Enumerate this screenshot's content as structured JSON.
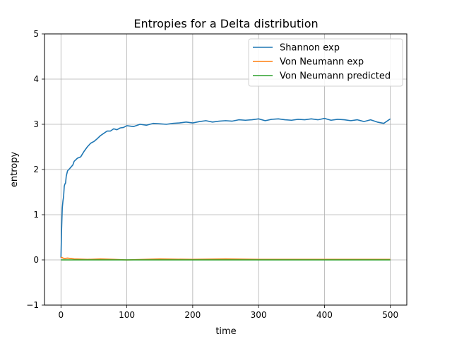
{
  "chart_data": {
    "type": "line",
    "title": "Entropies for a Delta distribution",
    "xlabel": "time",
    "ylabel": "entropy",
    "xlim": [
      -25,
      525
    ],
    "ylim": [
      -1,
      5
    ],
    "xticks": [
      0,
      100,
      200,
      300,
      400,
      500
    ],
    "yticks": [
      -1,
      0,
      1,
      2,
      3,
      4,
      5
    ],
    "grid": true,
    "legend_position": "top-right",
    "series": [
      {
        "name": "Shannon exp",
        "color": "#1f77b4",
        "x": [
          0,
          1,
          2,
          3,
          4,
          5,
          6,
          7,
          8,
          10,
          12,
          15,
          18,
          20,
          25,
          30,
          35,
          40,
          45,
          50,
          55,
          60,
          65,
          70,
          75,
          80,
          85,
          90,
          95,
          100,
          110,
          120,
          130,
          140,
          150,
          160,
          170,
          180,
          190,
          200,
          210,
          220,
          230,
          240,
          250,
          260,
          270,
          280,
          290,
          300,
          310,
          320,
          330,
          340,
          350,
          360,
          370,
          380,
          390,
          400,
          410,
          420,
          430,
          440,
          450,
          460,
          470,
          480,
          490,
          500
        ],
        "y": [
          0.05,
          0.7,
          1.15,
          1.3,
          1.4,
          1.63,
          1.68,
          1.7,
          1.85,
          1.97,
          2.0,
          2.05,
          2.1,
          2.18,
          2.25,
          2.28,
          2.4,
          2.5,
          2.58,
          2.62,
          2.68,
          2.75,
          2.8,
          2.85,
          2.85,
          2.9,
          2.88,
          2.92,
          2.93,
          2.97,
          2.95,
          3.0,
          2.98,
          3.02,
          3.01,
          3.0,
          3.02,
          3.03,
          3.05,
          3.03,
          3.06,
          3.08,
          3.05,
          3.07,
          3.08,
          3.07,
          3.1,
          3.09,
          3.1,
          3.12,
          3.08,
          3.11,
          3.12,
          3.1,
          3.09,
          3.11,
          3.1,
          3.12,
          3.1,
          3.13,
          3.09,
          3.11,
          3.1,
          3.08,
          3.1,
          3.06,
          3.1,
          3.05,
          3.02,
          3.12
        ]
      },
      {
        "name": "Von Neumann exp",
        "color": "#ff7f0e",
        "x": [
          0,
          5,
          10,
          20,
          40,
          60,
          80,
          100,
          150,
          200,
          250,
          300,
          350,
          400,
          450,
          500
        ],
        "y": [
          0.06,
          0.03,
          0.04,
          0.02,
          0.01,
          0.02,
          0.01,
          0.0,
          0.02,
          0.01,
          0.02,
          0.01,
          0.01,
          0.01,
          0.01,
          0.01
        ]
      },
      {
        "name": "Von Neumann predicted",
        "color": "#2ca02c",
        "x": [
          0,
          500
        ],
        "y": [
          0.0,
          0.0
        ]
      }
    ]
  }
}
